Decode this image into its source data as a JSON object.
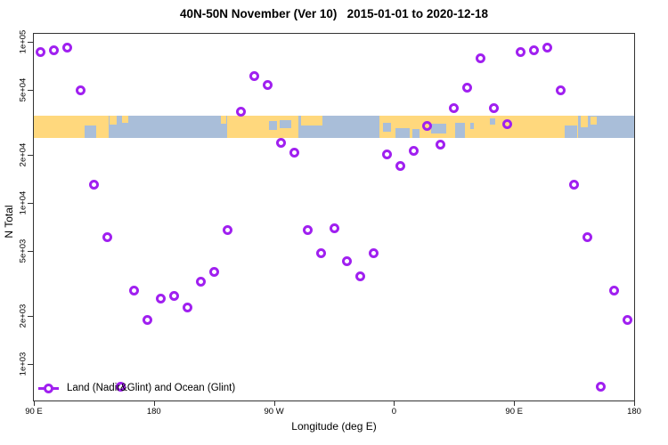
{
  "title": "40N-50N November (Ver 10)   2015-01-01 to 2020-12-18",
  "legend": {
    "label": "Land (Nadir&Glint) and Ocean (Glint)",
    "position": "bottom-left"
  },
  "chart_data": {
    "type": "scatter",
    "title": "40N-50N November (Ver 10)   2015-01-01 to 2020-12-18",
    "xlabel": "Longitude (deg E)",
    "ylabel": "N Total",
    "x_axis": {
      "min": 90,
      "max": 540,
      "note_unit": "deg E continuing eastward, 90E wraps to 180 twice"
    },
    "y_axis": {
      "scale": "log10",
      "top_value": 111000,
      "bottom_value": 600
    },
    "x_ticks": [
      {
        "lon": 90,
        "label": "90 E"
      },
      {
        "lon": 180,
        "label": "180"
      },
      {
        "lon": 270,
        "label": "90 W"
      },
      {
        "lon": 360,
        "label": "0"
      },
      {
        "lon": 450,
        "label": "90 E"
      },
      {
        "lon": 540,
        "label": "180"
      }
    ],
    "y_ticks": [
      {
        "value": 100000,
        "label": "1e+05"
      },
      {
        "value": 50000,
        "label": "5e+04"
      },
      {
        "value": 20000,
        "label": "2e+04"
      },
      {
        "value": 10000,
        "label": "1e+04"
      },
      {
        "value": 5000,
        "label": "5e+03"
      },
      {
        "value": 2000,
        "label": "2e+03"
      },
      {
        "value": 1000,
        "label": "1e+03"
      }
    ],
    "marker": {
      "shape": "open-circle",
      "color": "#A020F0"
    },
    "series": [
      {
        "name": "Land (Nadir&Glint) and Ocean (Glint)",
        "points": [
          {
            "lon": 95,
            "n": 86000
          },
          {
            "lon": 105,
            "n": 89000
          },
          {
            "lon": 115,
            "n": 92000
          },
          {
            "lon": 125,
            "n": 50000
          },
          {
            "lon": 135,
            "n": 13000
          },
          {
            "lon": 145,
            "n": 6100
          },
          {
            "lon": 155,
            "n": 720
          },
          {
            "lon": 165,
            "n": 2850
          },
          {
            "lon": 175,
            "n": 1870
          },
          {
            "lon": 185,
            "n": 2550
          },
          {
            "lon": 195,
            "n": 2650
          },
          {
            "lon": 205,
            "n": 2250
          },
          {
            "lon": 215,
            "n": 3250
          },
          {
            "lon": 225,
            "n": 3750
          },
          {
            "lon": 235,
            "n": 6800
          },
          {
            "lon": 245,
            "n": 37000
          },
          {
            "lon": 255,
            "n": 61000
          },
          {
            "lon": 265,
            "n": 54000
          },
          {
            "lon": 275,
            "n": 23500
          },
          {
            "lon": 285,
            "n": 20500
          },
          {
            "lon": 295,
            "n": 6800
          },
          {
            "lon": 305,
            "n": 4900
          },
          {
            "lon": 315,
            "n": 7000
          },
          {
            "lon": 325,
            "n": 4350
          },
          {
            "lon": 335,
            "n": 3500
          },
          {
            "lon": 345,
            "n": 4900
          },
          {
            "lon": 355,
            "n": 20000
          },
          {
            "lon": 365,
            "n": 17000
          },
          {
            "lon": 375,
            "n": 21000
          },
          {
            "lon": 385,
            "n": 30000
          },
          {
            "lon": 395,
            "n": 23000
          },
          {
            "lon": 405,
            "n": 39000
          },
          {
            "lon": 415,
            "n": 52000
          },
          {
            "lon": 425,
            "n": 79000
          },
          {
            "lon": 435,
            "n": 39000
          },
          {
            "lon": 445,
            "n": 31000
          },
          {
            "lon": 455,
            "n": 86000
          },
          {
            "lon": 465,
            "n": 89000
          },
          {
            "lon": 475,
            "n": 92000
          },
          {
            "lon": 485,
            "n": 50000
          },
          {
            "lon": 495,
            "n": 13000
          },
          {
            "lon": 505,
            "n": 6100
          },
          {
            "lon": 515,
            "n": 720
          },
          {
            "lon": 525,
            "n": 2850
          },
          {
            "lon": 535,
            "n": 1870
          }
        ]
      }
    ],
    "map_band": {
      "description": "40N-50N land/ocean strip drawn across the plot",
      "ocean_color": "#A9BED9",
      "land_color": "#FFD87D",
      "land_segments": [
        [
          90,
          146
        ],
        [
          235,
          288
        ],
        [
          349,
          498
        ]
      ],
      "land_patches": [
        {
          "lon": [
            147,
            152
          ],
          "v": [
            0,
            40
          ]
        },
        {
          "lon": [
            156,
            161
          ],
          "v": [
            0,
            30
          ]
        },
        {
          "lon": [
            230,
            234
          ],
          "v": [
            0,
            35
          ]
        },
        {
          "lon": [
            290,
            306
          ],
          "v": [
            0,
            45
          ]
        },
        {
          "lon": [
            500,
            505
          ],
          "v": [
            0,
            50
          ]
        },
        {
          "lon": [
            507,
            512
          ],
          "v": [
            5,
            40
          ]
        }
      ],
      "water_patches": [
        {
          "lon": [
            128,
            137
          ],
          "v": [
            45,
            100
          ]
        },
        {
          "lon": [
            266,
            272
          ],
          "v": [
            25,
            65
          ]
        },
        {
          "lon": [
            274,
            283
          ],
          "v": [
            20,
            55
          ]
        },
        {
          "lon": [
            352,
            358
          ],
          "v": [
            30,
            70
          ]
        },
        {
          "lon": [
            361,
            372
          ],
          "v": [
            55,
            100
          ]
        },
        {
          "lon": [
            374,
            379
          ],
          "v": [
            60,
            100
          ]
        },
        {
          "lon": [
            388,
            399
          ],
          "v": [
            35,
            80
          ]
        },
        {
          "lon": [
            406,
            413
          ],
          "v": [
            30,
            100
          ]
        },
        {
          "lon": [
            417,
            420
          ],
          "v": [
            30,
            60
          ]
        },
        {
          "lon": [
            432,
            436
          ],
          "v": [
            10,
            40
          ]
        },
        {
          "lon": [
            488,
            497
          ],
          "v": [
            45,
            100
          ]
        }
      ]
    },
    "legend_position": "bottom-left",
    "grid": false
  }
}
